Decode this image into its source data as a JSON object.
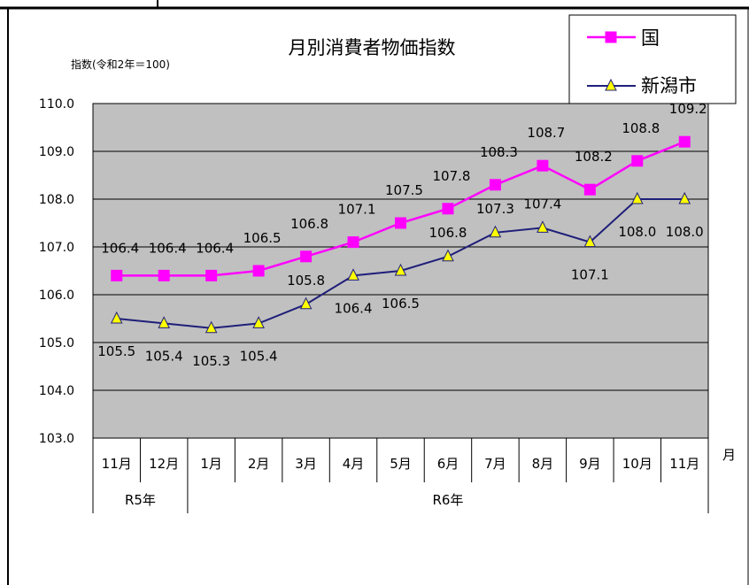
{
  "chart_data": {
    "type": "line",
    "title": "月別消費者物価指数",
    "ylabel": "指数(令和2年＝100)",
    "xlabel": "月",
    "ylim": [
      103.0,
      110.0
    ],
    "y_ticks": [
      "110.0",
      "109.0",
      "108.0",
      "107.0",
      "106.0",
      "105.0",
      "104.0",
      "103.0"
    ],
    "grid": true,
    "legend_position": "top-right",
    "categories": [
      "11月",
      "12月",
      "1月",
      "2月",
      "3月",
      "4月",
      "5月",
      "6月",
      "7月",
      "8月",
      "9月",
      "10月",
      "11月"
    ],
    "year_groups": [
      {
        "label": "R5年",
        "count": 2
      },
      {
        "label": "R6年",
        "count": 11
      }
    ],
    "series": [
      {
        "name": "国",
        "color": "#ff00ff",
        "marker": "square",
        "values": [
          106.4,
          106.4,
          106.4,
          106.5,
          106.8,
          107.1,
          107.5,
          107.8,
          108.3,
          108.7,
          108.2,
          108.8,
          109.2
        ]
      },
      {
        "name": "新潟市",
        "color": "#1f1f7a",
        "marker": "triangle",
        "marker_fill": "#ffff00",
        "values": [
          105.5,
          105.4,
          105.3,
          105.4,
          105.8,
          106.4,
          106.5,
          106.8,
          107.3,
          107.4,
          107.1,
          108.0,
          108.0
        ]
      }
    ],
    "colors": {
      "plot_bg": "#c0c0c0",
      "gridline": "#000000"
    }
  }
}
